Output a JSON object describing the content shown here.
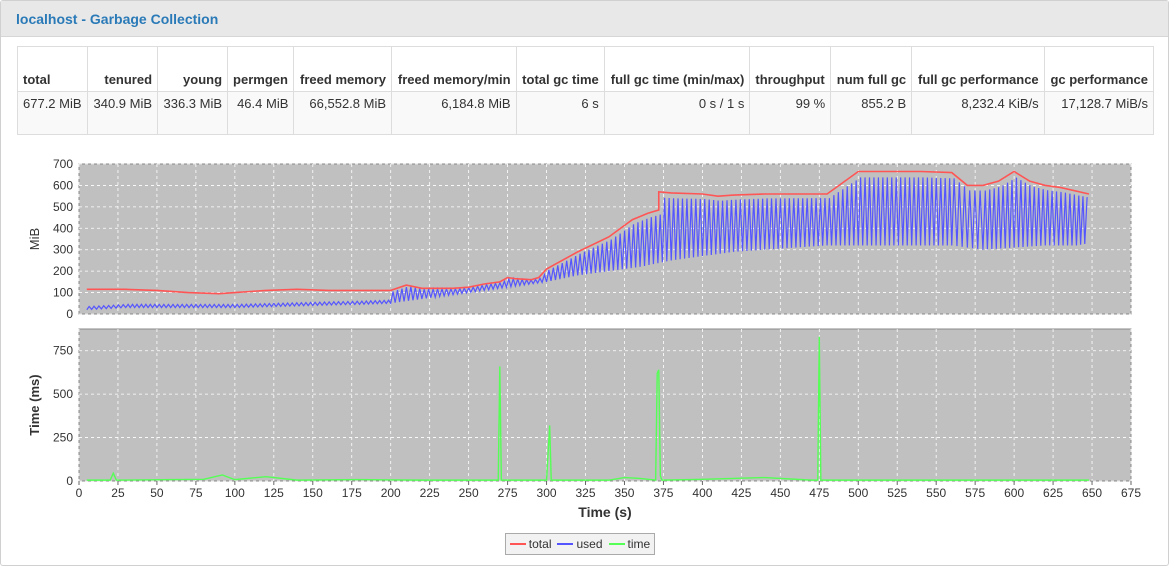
{
  "header": {
    "title": "localhost - Garbage Collection"
  },
  "stats": {
    "columns": [
      "total",
      "tenured",
      "young",
      "permgen",
      "freed memory",
      "freed memory/min",
      "total gc time",
      "full gc time (min/max)",
      "throughput",
      "num full gc",
      "full gc performance",
      "gc performance"
    ],
    "values": [
      "677.2 MiB",
      "340.9 MiB",
      "336.3 MiB",
      "46.4 MiB",
      "66,552.8 MiB",
      "6,184.8 MiB",
      "6 s",
      "0 s / 1 s",
      "99 %",
      "855.2 B",
      "8,232.4 KiB/s",
      "17,128.7 MiB/s"
    ]
  },
  "colors": {
    "total": "#ff5555",
    "used": "#5555ff",
    "time": "#55ff55",
    "plot_bg": "#c0c0c0",
    "grid": "#ffffff"
  },
  "chart_data": [
    {
      "type": "line",
      "ylabel": "MiB",
      "xlim": [
        0,
        675
      ],
      "ylim": [
        0,
        700
      ],
      "yticks": [
        0,
        100,
        200,
        300,
        400,
        500,
        600,
        700
      ],
      "grid": true,
      "series": [
        {
          "name": "total",
          "x": [
            5,
            30,
            50,
            70,
            90,
            100,
            110,
            120,
            140,
            160,
            180,
            200,
            210,
            220,
            240,
            250,
            260,
            270,
            275,
            280,
            290,
            295,
            300,
            305,
            320,
            340,
            355,
            365,
            372,
            372,
            380,
            400,
            410,
            420,
            440,
            460,
            480,
            500,
            520,
            540,
            560,
            570,
            580,
            590,
            600,
            610,
            620,
            630,
            648
          ],
          "y": [
            115,
            115,
            110,
            100,
            95,
            100,
            105,
            110,
            115,
            110,
            110,
            110,
            135,
            120,
            120,
            125,
            140,
            150,
            170,
            165,
            160,
            170,
            210,
            230,
            290,
            360,
            440,
            470,
            485,
            570,
            565,
            560,
            550,
            555,
            560,
            560,
            560,
            665,
            665,
            665,
            660,
            600,
            600,
            620,
            665,
            620,
            600,
            590,
            560
          ]
        },
        {
          "name": "used",
          "x": [
            5,
            30,
            50,
            100,
            150,
            180,
            200,
            220,
            240,
            260,
            280,
            300,
            320,
            340,
            360,
            380,
            400,
            420,
            440,
            460,
            480,
            500,
            520,
            540,
            560,
            570,
            580,
            600,
            620,
            640,
            648
          ],
          "y": [
            20,
            30,
            30,
            30,
            40,
            45,
            50,
            70,
            90,
            110,
            130,
            150,
            180,
            200,
            220,
            250,
            270,
            290,
            300,
            310,
            320,
            320,
            320,
            320,
            320,
            310,
            300,
            310,
            320,
            320,
            330
          ]
        },
        {
          "name": "time",
          "x": [
            5,
            20,
            22,
            24,
            60,
            80,
            92,
            100,
            120,
            140,
            180,
            220,
            260,
            269,
            270,
            271,
            300,
            302,
            303,
            304,
            340,
            350,
            360,
            370,
            371,
            372,
            373,
            374,
            400,
            440,
            470,
            474,
            475,
            476,
            500,
            550,
            600,
            648
          ],
          "y": [
            5,
            5,
            45,
            5,
            8,
            10,
            35,
            8,
            25,
            5,
            8,
            5,
            5,
            5,
            660,
            5,
            5,
            320,
            5,
            5,
            5,
            20,
            15,
            5,
            620,
            640,
            30,
            5,
            10,
            20,
            5,
            5,
            830,
            5,
            5,
            5,
            5,
            5
          ]
        }
      ]
    },
    {
      "type": "line",
      "xlabel": "Time (s)",
      "ylabel": "Time (ms)",
      "xlim": [
        0,
        675
      ],
      "ylim": [
        0,
        875
      ],
      "xticks": [
        0,
        25,
        50,
        75,
        100,
        125,
        150,
        175,
        200,
        225,
        250,
        275,
        300,
        325,
        350,
        375,
        400,
        425,
        450,
        475,
        500,
        525,
        550,
        575,
        600,
        625,
        650,
        675
      ],
      "yticks": [
        0,
        250,
        500,
        750
      ],
      "grid": true
    }
  ],
  "legend": {
    "items": [
      "total",
      "used",
      "time"
    ]
  }
}
